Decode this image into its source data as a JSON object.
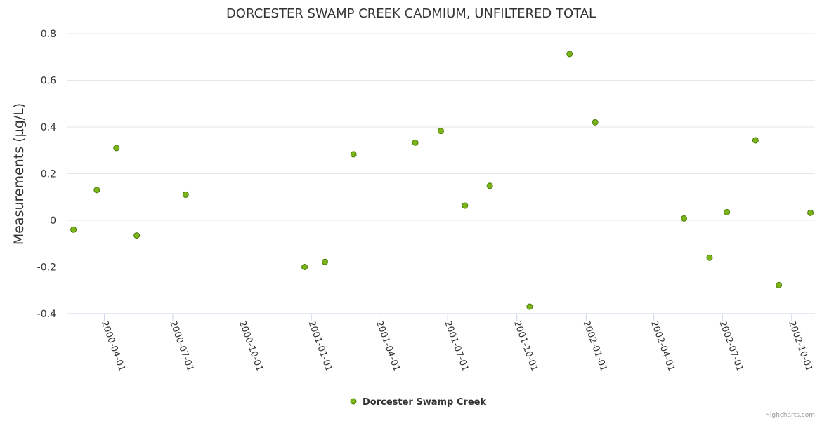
{
  "chart_data": {
    "type": "scatter",
    "title": "DORCESTER SWAMP CREEK CADMIUM, UNFILTERED TOTAL",
    "xlabel": "",
    "ylabel": "Measurements (µg/L)",
    "ylim": [
      -0.4,
      0.8
    ],
    "y_ticks": [
      "-0.4",
      "-0.2",
      "0",
      "0.2",
      "0.4",
      "0.6",
      "0.8"
    ],
    "x_ticks": [
      "2000-04-01",
      "2000-07-01",
      "2000-10-01",
      "2001-01-01",
      "2001-04-01",
      "2001-07-01",
      "2001-10-01",
      "2002-01-01",
      "2002-04-01",
      "2002-07-01",
      "2002-10-01"
    ],
    "legend_position": "bottom-center",
    "grid": true,
    "series": [
      {
        "name": "Dorcester Swamp Creek",
        "color": "#7cb518",
        "x": [
          "2000-02-20",
          "2000-03-22",
          "2000-04-17",
          "2000-05-14",
          "2000-07-18",
          "2000-12-23",
          "2001-01-19",
          "2001-02-26",
          "2001-05-19",
          "2001-06-22",
          "2001-07-24",
          "2001-08-26",
          "2001-10-18",
          "2001-12-10",
          "2002-01-13",
          "2002-05-11",
          "2002-06-14",
          "2002-07-07",
          "2002-08-14",
          "2002-09-14",
          "2002-10-26"
        ],
        "y": [
          -0.04,
          0.13,
          0.31,
          -0.065,
          0.11,
          -0.2,
          -0.178,
          0.283,
          0.333,
          0.383,
          0.063,
          0.148,
          -0.37,
          0.713,
          0.42,
          0.008,
          -0.16,
          0.035,
          0.343,
          -0.278,
          0.032
        ]
      }
    ]
  },
  "credits": "Highcharts.com"
}
